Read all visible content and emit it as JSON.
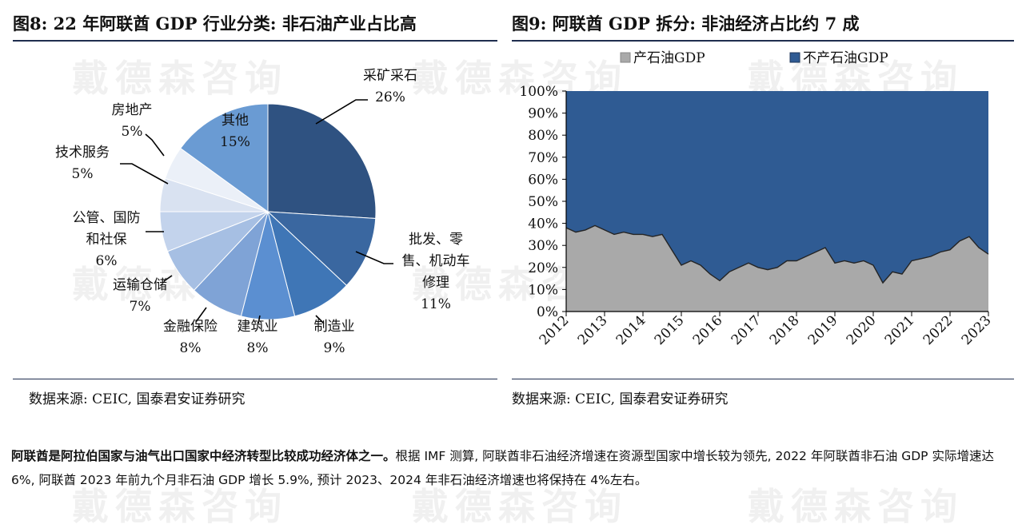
{
  "fig8": {
    "title": "图8: 22 年阿联酋 GDP 行业分类: 非石油产业占比高",
    "source": "数据来源: CEIC, 国泰君安证券研究"
  },
  "fig9": {
    "title": "图9: 阿联酋 GDP 拆分: 非油经济占比约 7 成",
    "source": "数据来源: CEIC, 国泰君安证券研究"
  },
  "watermark": "戴德森咨询",
  "body": {
    "lead": "阿联酋是阿拉伯国家与油气出口国家中经济转型比较成功经济体之一。",
    "rest": "根据 IMF 测算, 阿联酋非石油经济增速在资源型国家中增长较为领先, 2022 年阿联酋非石油 GDP 实际增速达 6%, 阿联酋 2023 年前九个月非石油 GDP 增长 5.9%, 预计 2023、2024 年非石油经济增速也将保持在 4%左右。"
  },
  "chart_data": [
    {
      "type": "pie",
      "slices": [
        {
          "label": "采矿采石",
          "value": 26,
          "display": "26%",
          "color": "#2f5281"
        },
        {
          "label": "批发、零售、机动车修理",
          "label_lines": [
            "批发、零",
            "售、机动车",
            "修理"
          ],
          "value": 11,
          "display": "11%",
          "color": "#3a67a0"
        },
        {
          "label": "制造业",
          "value": 9,
          "display": "9%",
          "color": "#3f76b6"
        },
        {
          "label": "建筑业",
          "value": 8,
          "display": "8%",
          "color": "#5b8fd1"
        },
        {
          "label": "金融保险",
          "value": 8,
          "display": "8%",
          "color": "#7fa3d6"
        },
        {
          "label": "运输仓储",
          "value": 7,
          "display": "7%",
          "color": "#a6bfe3"
        },
        {
          "label": "公管、国防和社保",
          "label_lines": [
            "公管、国防",
            "和社保"
          ],
          "value": 6,
          "display": "6%",
          "color": "#c3d3ec"
        },
        {
          "label": "技术服务",
          "value": 5,
          "display": "5%",
          "color": "#d9e2f1"
        },
        {
          "label": "房地产",
          "value": 5,
          "display": "5%",
          "color": "#ebf0f8"
        },
        {
          "label": "其他",
          "value": 15,
          "display": "15%",
          "color": "#6a9bd3"
        }
      ]
    },
    {
      "type": "area",
      "stacked_percent": true,
      "x_ticks": [
        "2012",
        "2013",
        "2014",
        "2015",
        "2016",
        "2017",
        "2018",
        "2019",
        "2020",
        "2021",
        "2022",
        "2023"
      ],
      "x": [
        2012.0,
        2012.25,
        2012.5,
        2012.75,
        2013.0,
        2013.25,
        2013.5,
        2013.75,
        2014.0,
        2014.25,
        2014.5,
        2014.75,
        2015.0,
        2015.25,
        2015.5,
        2015.75,
        2016.0,
        2016.25,
        2016.5,
        2016.75,
        2017.0,
        2017.25,
        2017.5,
        2017.75,
        2018.0,
        2018.25,
        2018.5,
        2018.75,
        2019.0,
        2019.25,
        2019.5,
        2019.75,
        2020.0,
        2020.25,
        2020.5,
        2020.75,
        2021.0,
        2021.25,
        2021.5,
        2021.75,
        2022.0,
        2022.25,
        2022.5,
        2022.75,
        2023.0
      ],
      "series": [
        {
          "name": "产石油GDP",
          "color": "#a9a9a9",
          "values": [
            38,
            36,
            37,
            39,
            37,
            35,
            36,
            35,
            35,
            34,
            35,
            28,
            21,
            23,
            21,
            17,
            14,
            18,
            20,
            22,
            20,
            19,
            20,
            23,
            23,
            25,
            27,
            29,
            22,
            23,
            22,
            23,
            21,
            13,
            18,
            17,
            23,
            24,
            25,
            27,
            28,
            32,
            34,
            29,
            26
          ]
        },
        {
          "name": "不产石油GDP",
          "color": "#2f5b93",
          "values": [
            62,
            64,
            63,
            61,
            63,
            65,
            64,
            65,
            65,
            66,
            65,
            72,
            79,
            77,
            79,
            83,
            86,
            82,
            80,
            78,
            80,
            81,
            80,
            77,
            77,
            75,
            73,
            71,
            78,
            77,
            78,
            77,
            79,
            87,
            82,
            83,
            77,
            76,
            75,
            73,
            72,
            68,
            66,
            71,
            74
          ]
        }
      ],
      "y_ticks": [
        "0%",
        "10%",
        "20%",
        "30%",
        "40%",
        "50%",
        "60%",
        "70%",
        "80%",
        "90%",
        "100%"
      ],
      "ylim": [
        0,
        100
      ],
      "xlim": [
        2012,
        2023
      ],
      "legend": "top"
    }
  ]
}
